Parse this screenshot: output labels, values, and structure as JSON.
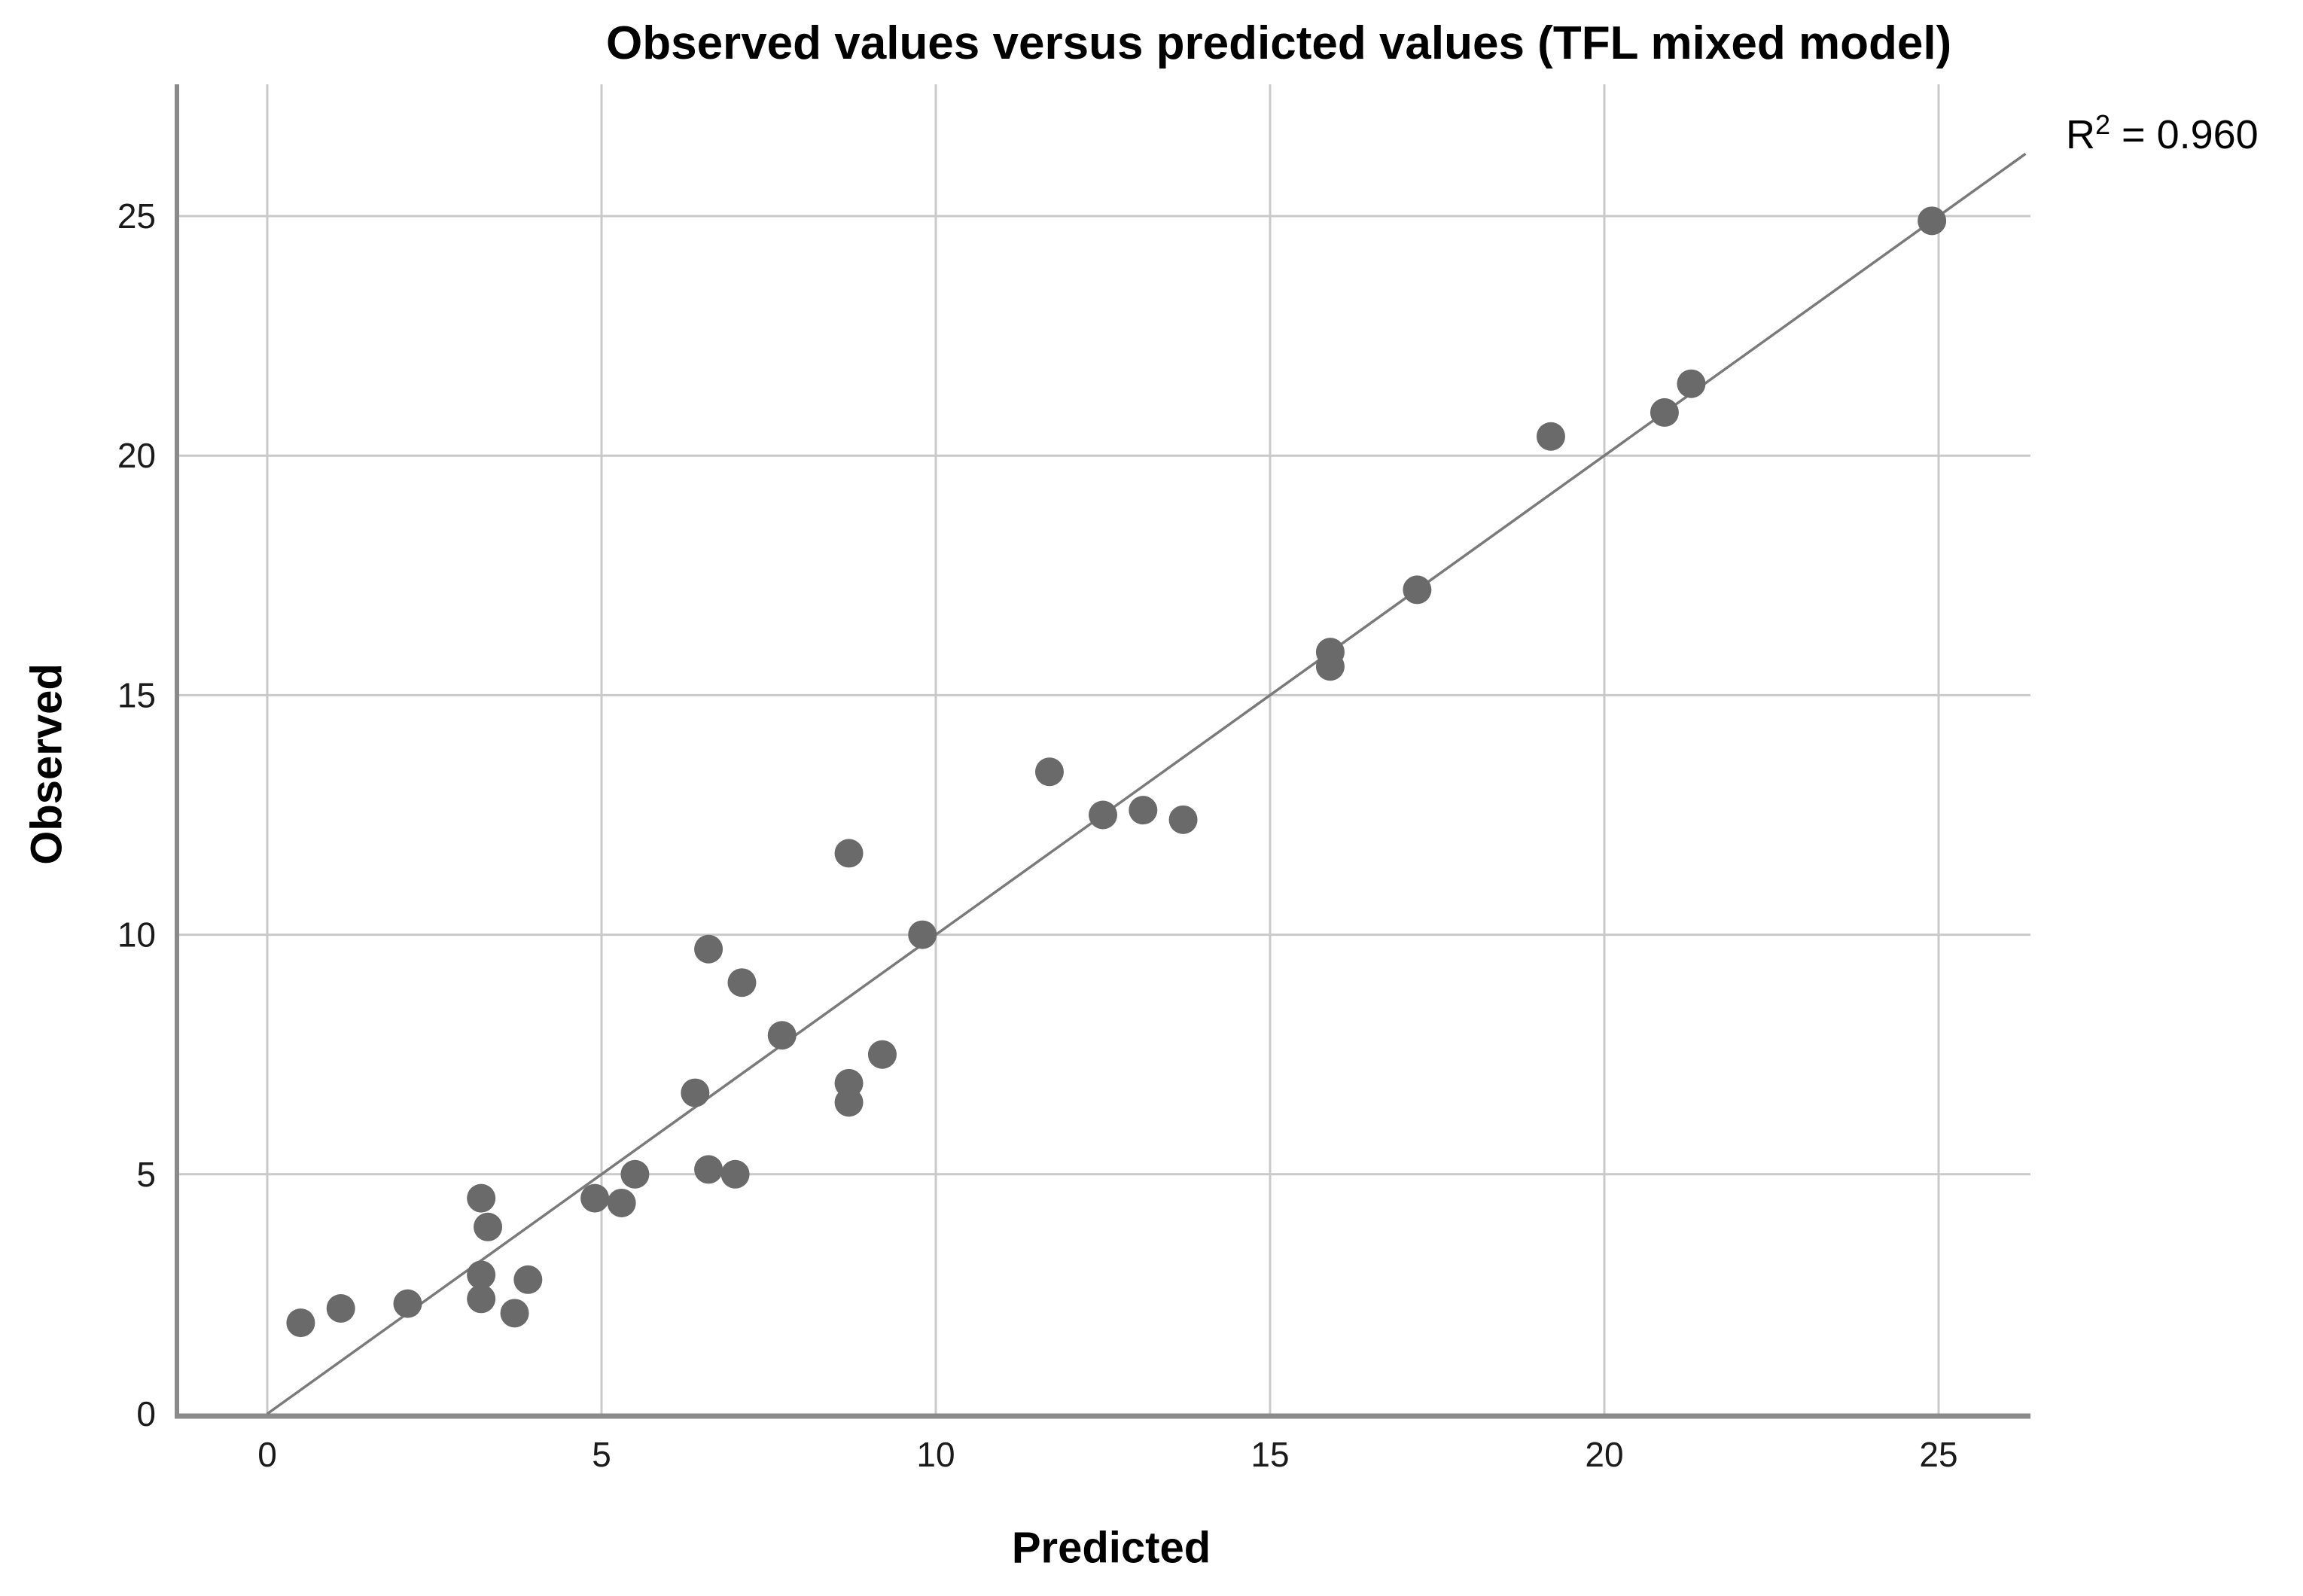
{
  "chart_data": {
    "type": "scatter",
    "title": "Observed values versus predicted values (TFL mixed model)",
    "xlabel": "Predicted",
    "ylabel": "Observed",
    "x_ticks": [
      0,
      5,
      10,
      15,
      20,
      25
    ],
    "y_ticks": [
      0,
      5,
      10,
      15,
      20,
      25
    ],
    "xlim": [
      -1.4,
      26.4
    ],
    "ylim": [
      0,
      27.7
    ],
    "grid": true,
    "legend": "none",
    "annotation": {
      "base": "R",
      "sup": "2",
      "rest": " = 0.960"
    },
    "identity_line": {
      "from": [
        0,
        0
      ],
      "to": [
        26.3,
        26.3
      ]
    },
    "points": [
      [
        0.5,
        1.9
      ],
      [
        1.1,
        2.2
      ],
      [
        2.1,
        2.3
      ],
      [
        3.2,
        4.5
      ],
      [
        3.3,
        3.9
      ],
      [
        3.2,
        2.9
      ],
      [
        3.2,
        2.4
      ],
      [
        3.7,
        2.1
      ],
      [
        3.9,
        2.8
      ],
      [
        4.9,
        4.5
      ],
      [
        5.3,
        4.4
      ],
      [
        5.5,
        5.0
      ],
      [
        6.4,
        6.7
      ],
      [
        6.6,
        5.1
      ],
      [
        7.0,
        5.0
      ],
      [
        6.6,
        9.7
      ],
      [
        7.1,
        9.0
      ],
      [
        7.7,
        7.9
      ],
      [
        8.7,
        11.7
      ],
      [
        8.7,
        6.9
      ],
      [
        8.7,
        6.5
      ],
      [
        9.2,
        7.5
      ],
      [
        9.8,
        10.0
      ],
      [
        11.7,
        13.4
      ],
      [
        12.5,
        12.5
      ],
      [
        13.1,
        12.6
      ],
      [
        13.7,
        12.4
      ],
      [
        15.9,
        15.9
      ],
      [
        15.9,
        15.6
      ],
      [
        17.2,
        17.2
      ],
      [
        19.2,
        20.4
      ],
      [
        20.9,
        20.9
      ],
      [
        21.3,
        21.5
      ],
      [
        24.9,
        24.9
      ]
    ],
    "colors": {
      "marker": "#6a6a6a",
      "grid": "#c9c9c9",
      "axis": "#8a8a8a",
      "line": "#7a7a7a",
      "text": "#1a1a1a"
    }
  }
}
